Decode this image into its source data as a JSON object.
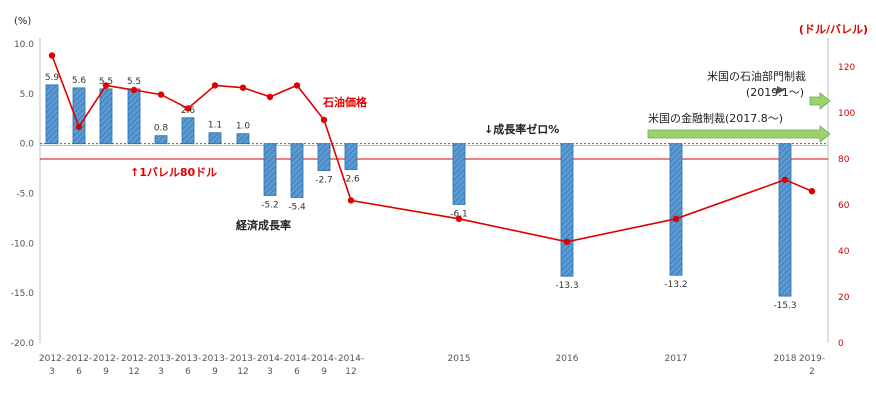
{
  "chart_data": {
    "type": "bar",
    "x": [
      "2012-3",
      "2012-6",
      "2012-9",
      "2012-12",
      "2013-3",
      "2013-6",
      "2013-9",
      "2013-12",
      "2014-3",
      "2014-6",
      "2014-9",
      "2014-12",
      "2015",
      "2016",
      "2017",
      "2018",
      "2019-2"
    ],
    "x_tick_labels": [
      [
        "2012-",
        "3"
      ],
      [
        "2012-",
        "6"
      ],
      [
        "2012-",
        "9"
      ],
      [
        "2012-",
        "12"
      ],
      [
        "2013-",
        "3"
      ],
      [
        "2013-",
        "6"
      ],
      [
        "2013-",
        "9"
      ],
      [
        "2013-",
        "12"
      ],
      [
        "2014-",
        "3"
      ],
      [
        "2014-",
        "6"
      ],
      [
        "2014-",
        "9"
      ],
      [
        "2014-",
        "12"
      ],
      [
        "2015",
        ""
      ],
      [
        "2016",
        ""
      ],
      [
        "2017",
        ""
      ],
      [
        "2018",
        ""
      ],
      [
        "2019-",
        "2"
      ]
    ],
    "series": [
      {
        "name": "経済成長率",
        "kind": "bar",
        "axis": "left",
        "color": "#5b9bd5",
        "values": [
          5.9,
          5.6,
          5.5,
          5.5,
          0.8,
          2.6,
          1.1,
          1.0,
          -5.2,
          -5.4,
          -2.7,
          -2.6,
          -6.1,
          -13.3,
          -13.2,
          -15.3,
          null
        ],
        "labels": [
          "5.9",
          "5.6",
          "5.5",
          "5.5",
          "0.8",
          "2.6",
          "1.1",
          "1.0",
          "-5.2",
          "-5.4",
          "-2.7",
          "-2.6",
          "-6.1",
          "-13.3",
          "-13.2",
          "-15.3",
          ""
        ]
      },
      {
        "name": "石油価格",
        "kind": "line",
        "axis": "right",
        "color": "#e00000",
        "values": [
          125,
          94,
          112,
          110,
          108,
          102,
          112,
          111,
          107,
          112,
          97,
          62,
          54,
          44,
          54,
          71,
          66
        ]
      }
    ],
    "left_axis": {
      "unit": "(%)",
      "ylim": [
        -20,
        10
      ],
      "ticks": [
        "10.0",
        "5.0",
        "0.0",
        "-5.0",
        "-10.0",
        "-15.0",
        "-20.0"
      ],
      "tick_values": [
        10,
        5,
        0,
        -5,
        -10,
        -15,
        -20
      ]
    },
    "right_axis": {
      "unit": "(ドル/バレル)",
      "ylim": [
        0,
        130
      ],
      "ticks": [
        "120",
        "100",
        "80",
        "60",
        "40",
        "20",
        "0"
      ],
      "tick_values": [
        120,
        100,
        80,
        60,
        40,
        20,
        0
      ]
    },
    "reference_line": {
      "value": 80,
      "axis": "right",
      "label": "↑1バレル80ドル",
      "color": "#e00000"
    },
    "zero_line": {
      "label": "↓成長率ゼロ%"
    },
    "annotations": {
      "growth_label": "経済成長率",
      "oil_label": "石油価格",
      "sanction_oil_line1": "米国の石油部門制裁",
      "sanction_oil_line2": "(2019.1～)",
      "sanction_finance": "米国の金融制裁(2017.8～)",
      "arrow_color": "#9bd16f"
    },
    "grid": false,
    "legend": "none"
  }
}
